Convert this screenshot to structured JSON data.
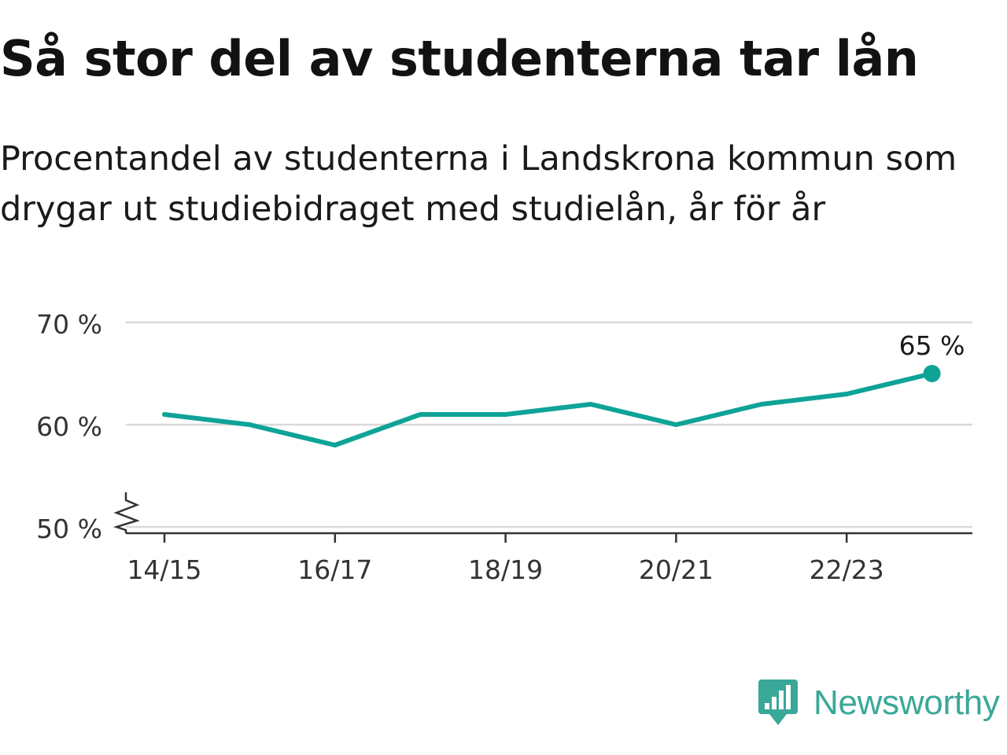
{
  "header": {
    "title": "Så stor del av studenterna tar lån",
    "subtitle": "Procentandel av studenterna i Landskrona kommun som drygar ut studiebidraget med studielån, år för år"
  },
  "chart_data": {
    "type": "line",
    "title": "Så stor del av studenterna tar lån",
    "subtitle": "Procentandel av studenterna i Landskrona kommun som drygar ut studiebidraget med studielån, år för år",
    "x": [
      "14/15",
      "15/16",
      "16/17",
      "17/18",
      "18/19",
      "19/20",
      "20/21",
      "21/22",
      "22/23",
      "23/24"
    ],
    "x_tick_labels": [
      "14/15",
      "16/17",
      "18/19",
      "20/21",
      "22/23"
    ],
    "series": [
      {
        "values": [
          61,
          60,
          58,
          61,
          61,
          62,
          60,
          62,
          63,
          65
        ]
      }
    ],
    "y_ticks": [
      50,
      60,
      70
    ],
    "y_tick_labels": [
      "50 %",
      "60 %",
      "70 %"
    ],
    "ylim": [
      50,
      70
    ],
    "y_axis_break": true,
    "grid": true,
    "end_label": "65 %",
    "line_color": "#0fa397"
  },
  "brand": {
    "name": "Newsworthy",
    "logo_icon": "bar-chart-speech-bubble-icon",
    "color": "#3aa898"
  }
}
